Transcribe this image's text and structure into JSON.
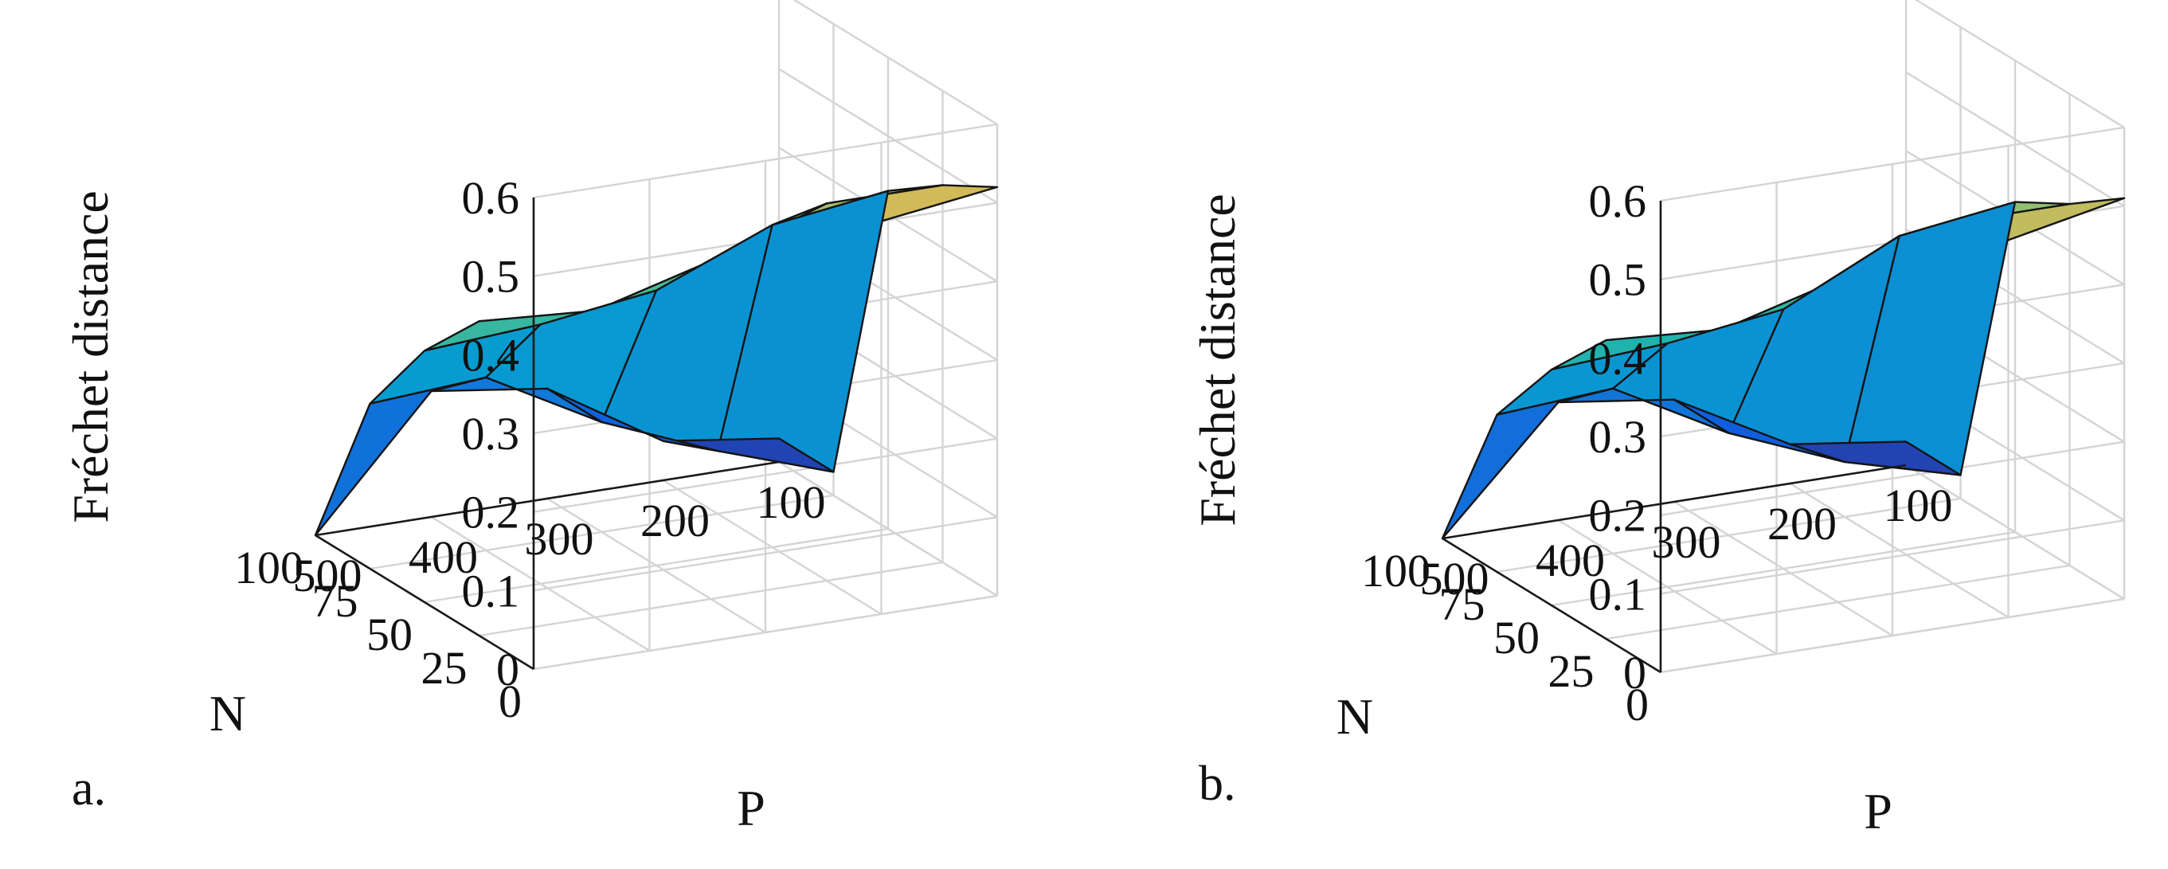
{
  "chart_data": [
    {
      "type": "surface3d",
      "panel_label": "a.",
      "zlabel": "Fréchet distance",
      "xlabel": "P",
      "ylabel": "N",
      "zlim": [
        0,
        0.6
      ],
      "z_ticks": [
        "0",
        "0.1",
        "0.2",
        "0.3",
        "0.4",
        "0.5",
        "0.6"
      ],
      "p_ticks": [
        "500",
        "400",
        "300",
        "200",
        "100"
      ],
      "n_ticks": [
        "0",
        "25",
        "50",
        "75",
        "100"
      ],
      "P": [
        500,
        400,
        300,
        200,
        100
      ],
      "N": [
        0,
        25,
        50,
        75,
        100
      ],
      "z": [
        [
          0.42,
          0.45,
          0.49,
          0.5,
          0.52
        ],
        [
          0.4,
          0.39,
          0.43,
          0.48,
          0.48
        ],
        [
          0.32,
          0.33,
          0.35,
          0.41,
          0.43
        ],
        [
          0.21,
          0.22,
          0.14,
          0.08,
          0.03
        ],
        [
          0.0,
          0.16,
          0.14,
          0.05,
          0.03
        ]
      ]
    },
    {
      "type": "surface3d",
      "panel_label": "b.",
      "zlabel": "Fréchet distance",
      "xlabel": "P",
      "ylabel": "N",
      "zlim": [
        0,
        0.6
      ],
      "z_ticks": [
        "0",
        "0.1",
        "0.2",
        "0.3",
        "0.4",
        "0.5",
        "0.6"
      ],
      "p_ticks": [
        "500",
        "400",
        "300",
        "200",
        "100"
      ],
      "n_ticks": [
        "0",
        "25",
        "50",
        "75",
        "100"
      ],
      "P": [
        500,
        400,
        300,
        200,
        100
      ],
      "N": [
        0,
        25,
        50,
        75,
        100
      ],
      "z": [
        [
          0.4,
          0.42,
          0.46,
          0.48,
          0.51
        ],
        [
          0.38,
          0.37,
          0.41,
          0.46,
          0.46
        ],
        [
          0.3,
          0.31,
          0.33,
          0.4,
          0.42
        ],
        [
          0.2,
          0.21,
          0.13,
          0.07,
          0.03
        ],
        [
          0.0,
          0.15,
          0.13,
          0.05,
          0.03
        ]
      ]
    }
  ]
}
